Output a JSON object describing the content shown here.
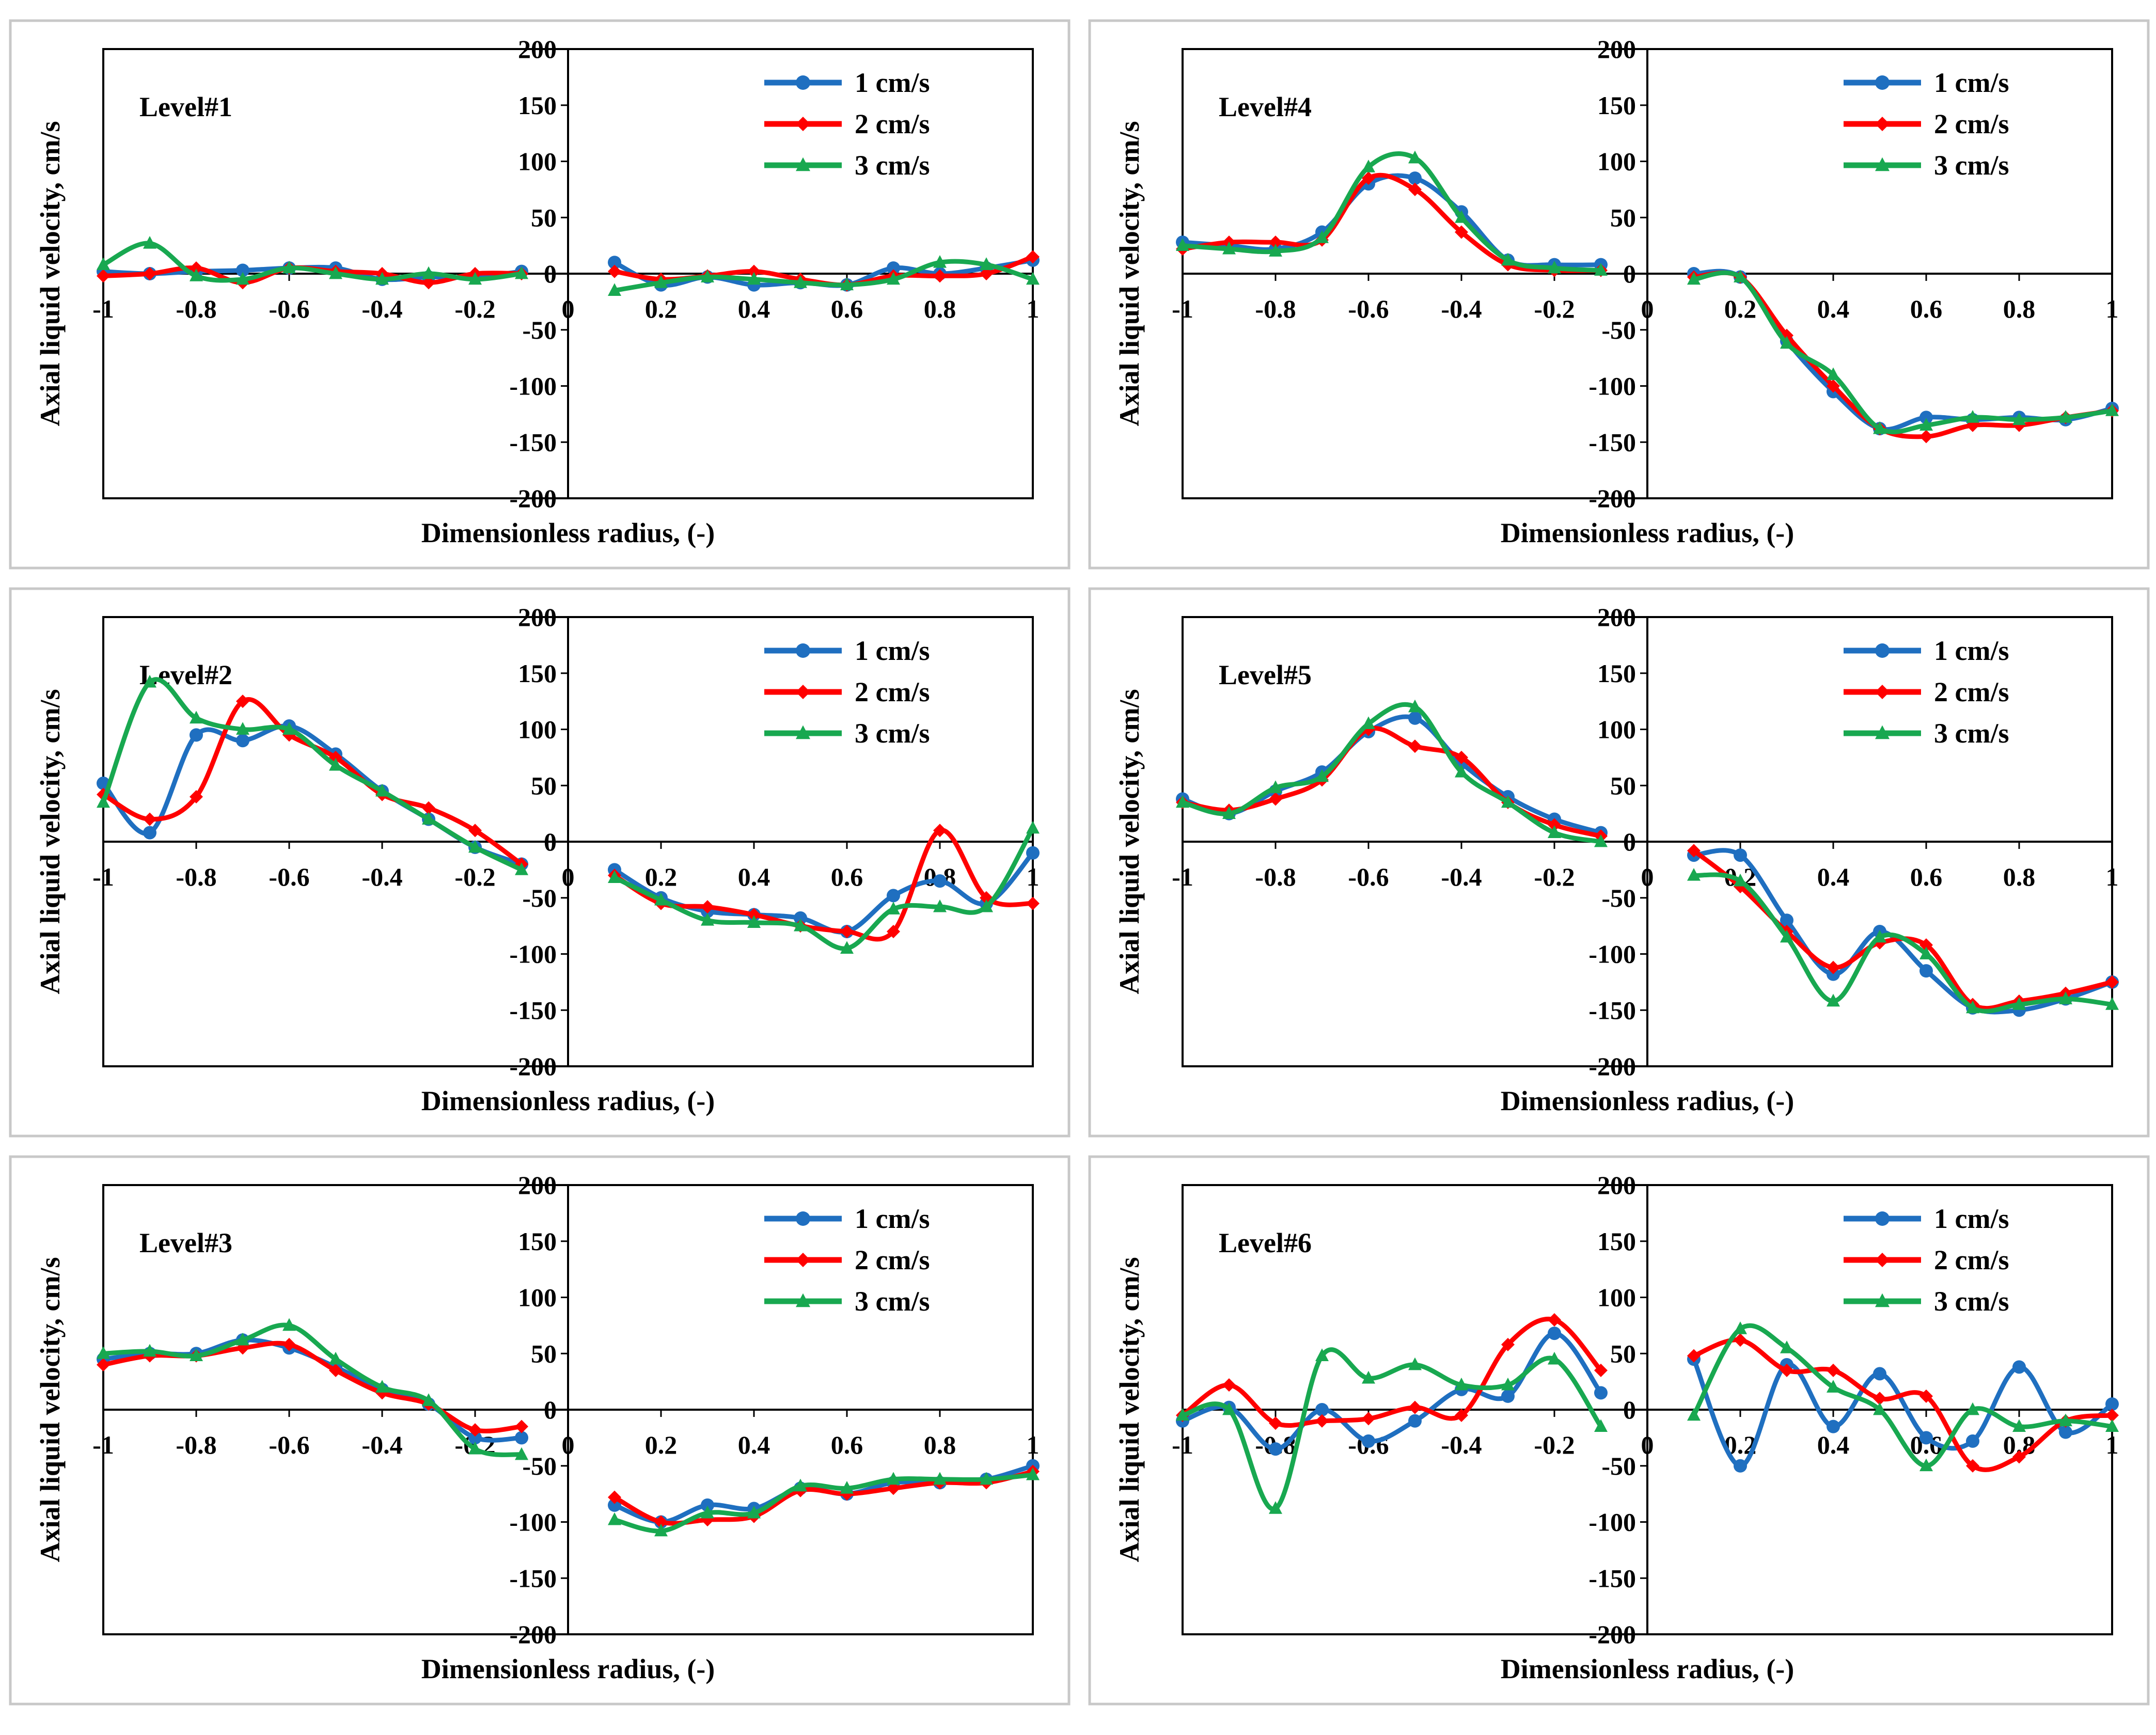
{
  "colors": {
    "s1": "#1f6fc0",
    "s2": "#ff0000",
    "s3": "#18a850"
  },
  "chart_data": [
    {
      "type": "line",
      "title": "Level#1",
      "xlabel": "Dimensionless radius, (-)",
      "ylabel": "Axial liquid velocity, cm/s",
      "xlim": [
        -1,
        1
      ],
      "ylim": [
        -200,
        200
      ],
      "xticks": [
        "-1",
        "-0.8",
        "-0.6",
        "-0.4",
        "-0.2",
        "0",
        "0.2",
        "0.4",
        "0.6",
        "0.8",
        "1"
      ],
      "yticks": [
        "-200",
        "-150",
        "-100",
        "-50",
        "0",
        "50",
        "100",
        "150",
        "200"
      ],
      "legend_position": "top-right",
      "series": [
        {
          "name": "1 cm/s",
          "color": "#1f6fc0",
          "x": [
            -1,
            -0.9,
            -0.8,
            -0.7,
            -0.6,
            -0.5,
            -0.4,
            -0.3,
            -0.2,
            -0.1,
            0.1,
            0.2,
            0.3,
            0.4,
            0.5,
            0.6,
            0.7,
            0.8,
            0.9,
            1
          ],
          "y": [
            2,
            0,
            2,
            3,
            5,
            5,
            -5,
            -3,
            -3,
            2,
            10,
            -10,
            -3,
            -10,
            -8,
            -10,
            5,
            0,
            5,
            12
          ]
        },
        {
          "name": "2 cm/s",
          "color": "#ff0000",
          "x": [
            -1,
            -0.9,
            -0.8,
            -0.7,
            -0.6,
            -0.5,
            -0.4,
            -0.3,
            -0.2,
            -0.1,
            0.1,
            0.2,
            0.3,
            0.4,
            0.5,
            0.6,
            0.7,
            0.8,
            0.9,
            1
          ],
          "y": [
            -2,
            0,
            5,
            -8,
            5,
            2,
            0,
            -8,
            0,
            0,
            2,
            -5,
            -2,
            2,
            -5,
            -10,
            -2,
            -2,
            0,
            15
          ]
        },
        {
          "name": "3 cm/s",
          "color": "#18a850",
          "x": [
            -1,
            -0.9,
            -0.8,
            -0.7,
            -0.6,
            -0.5,
            -0.4,
            -0.3,
            -0.2,
            -0.1,
            0.1,
            0.2,
            0.3,
            0.4,
            0.5,
            0.6,
            0.7,
            0.8,
            0.9,
            1
          ],
          "y": [
            8,
            27,
            -2,
            -5,
            5,
            0,
            -5,
            0,
            -5,
            0,
            -15,
            -8,
            -3,
            -5,
            -8,
            -10,
            -5,
            10,
            8,
            -5
          ]
        }
      ]
    },
    {
      "type": "line",
      "title": "Level#4",
      "xlabel": "Dimensionless radius, (-)",
      "ylabel": "Axial liquid velocity, cm/s",
      "xlim": [
        -1,
        1
      ],
      "ylim": [
        -200,
        200
      ],
      "xticks": [
        "-1",
        "-0.8",
        "-0.6",
        "-0.4",
        "-0.2",
        "0",
        "0.2",
        "0.4",
        "0.6",
        "0.8",
        "1"
      ],
      "yticks": [
        "-200",
        "-150",
        "-100",
        "-50",
        "0",
        "50",
        "100",
        "150",
        "200"
      ],
      "legend_position": "top-right",
      "series": [
        {
          "name": "1 cm/s",
          "color": "#1f6fc0",
          "x": [
            -1,
            -0.9,
            -0.8,
            -0.7,
            -0.6,
            -0.5,
            -0.4,
            -0.3,
            -0.2,
            -0.1,
            0.1,
            0.2,
            0.3,
            0.4,
            0.5,
            0.6,
            0.7,
            0.8,
            0.9,
            1
          ],
          "y": [
            28,
            25,
            22,
            37,
            80,
            85,
            55,
            12,
            8,
            8,
            0,
            -3,
            -60,
            -105,
            -138,
            -128,
            -130,
            -128,
            -130,
            -120
          ]
        },
        {
          "name": "2 cm/s",
          "color": "#ff0000",
          "x": [
            -1,
            -0.9,
            -0.8,
            -0.7,
            -0.6,
            -0.5,
            -0.4,
            -0.3,
            -0.2,
            -0.1,
            0.1,
            0.2,
            0.3,
            0.4,
            0.5,
            0.6,
            0.7,
            0.8,
            0.9,
            1
          ],
          "y": [
            22,
            28,
            28,
            30,
            85,
            75,
            37,
            8,
            3,
            3,
            -3,
            -3,
            -55,
            -100,
            -138,
            -145,
            -135,
            -135,
            -128,
            -122
          ]
        },
        {
          "name": "3 cm/s",
          "color": "#18a850",
          "x": [
            -1,
            -0.9,
            -0.8,
            -0.7,
            -0.6,
            -0.5,
            -0.4,
            -0.3,
            -0.2,
            -0.1,
            0.1,
            0.2,
            0.3,
            0.4,
            0.5,
            0.6,
            0.7,
            0.8,
            0.9,
            1
          ],
          "y": [
            25,
            22,
            20,
            32,
            95,
            103,
            50,
            12,
            5,
            3,
            -5,
            -3,
            -62,
            -90,
            -138,
            -135,
            -128,
            -130,
            -128,
            -122
          ]
        }
      ]
    },
    {
      "type": "line",
      "title": "Level#2",
      "xlabel": "Dimensionless radius, (-)",
      "ylabel": "Axial liquid velocity, cm/s",
      "xlim": [
        -1,
        1
      ],
      "ylim": [
        -200,
        200
      ],
      "xticks": [
        "-1",
        "-0.8",
        "-0.6",
        "-0.4",
        "-0.2",
        "0",
        "0.2",
        "0.4",
        "0.6",
        "0.8",
        "1"
      ],
      "yticks": [
        "-200",
        "-150",
        "-100",
        "-50",
        "0",
        "50",
        "100",
        "150",
        "200"
      ],
      "legend_position": "top-right",
      "series": [
        {
          "name": "1 cm/s",
          "color": "#1f6fc0",
          "x": [
            -1,
            -0.9,
            -0.8,
            -0.7,
            -0.6,
            -0.5,
            -0.4,
            -0.3,
            -0.2,
            -0.1,
            0.1,
            0.2,
            0.3,
            0.4,
            0.5,
            0.6,
            0.7,
            0.8,
            0.9,
            1
          ],
          "y": [
            52,
            8,
            95,
            90,
            103,
            78,
            45,
            20,
            -5,
            -20,
            -25,
            -50,
            -62,
            -65,
            -68,
            -80,
            -48,
            -35,
            -55,
            -10
          ]
        },
        {
          "name": "2 cm/s",
          "color": "#ff0000",
          "x": [
            -1,
            -0.9,
            -0.8,
            -0.7,
            -0.6,
            -0.5,
            -0.4,
            -0.3,
            -0.2,
            -0.1,
            0.1,
            0.2,
            0.3,
            0.4,
            0.5,
            0.6,
            0.7,
            0.8,
            0.9,
            1
          ],
          "y": [
            42,
            20,
            40,
            125,
            95,
            75,
            42,
            30,
            10,
            -20,
            -30,
            -55,
            -58,
            -65,
            -75,
            -80,
            -80,
            10,
            -50,
            -55
          ]
        },
        {
          "name": "3 cm/s",
          "color": "#18a850",
          "x": [
            -1,
            -0.9,
            -0.8,
            -0.7,
            -0.6,
            -0.5,
            -0.4,
            -0.3,
            -0.2,
            -0.1,
            0.1,
            0.2,
            0.3,
            0.4,
            0.5,
            0.6,
            0.7,
            0.8,
            0.9,
            1
          ],
          "y": [
            35,
            142,
            110,
            100,
            100,
            68,
            45,
            20,
            -5,
            -25,
            -32,
            -52,
            -70,
            -72,
            -75,
            -95,
            -60,
            -58,
            -58,
            12
          ]
        }
      ]
    },
    {
      "type": "line",
      "title": "Level#5",
      "xlabel": "Dimensionless radius, (-)",
      "ylabel": "Axial liquid velocity, cm/s",
      "xlim": [
        -1,
        1
      ],
      "ylim": [
        -200,
        200
      ],
      "xticks": [
        "-1",
        "-0.8",
        "-0.6",
        "-0.4",
        "-0.2",
        "0",
        "0.2",
        "0.4",
        "0.6",
        "0.8",
        "1"
      ],
      "yticks": [
        "-200",
        "-150",
        "-100",
        "-50",
        "0",
        "50",
        "100",
        "150",
        "200"
      ],
      "legend_position": "top-right",
      "series": [
        {
          "name": "1 cm/s",
          "color": "#1f6fc0",
          "x": [
            -1,
            -0.9,
            -0.8,
            -0.7,
            -0.6,
            -0.5,
            -0.4,
            -0.3,
            -0.2,
            -0.1,
            0.1,
            0.2,
            0.3,
            0.4,
            0.5,
            0.6,
            0.7,
            0.8,
            0.9,
            1
          ],
          "y": [
            38,
            25,
            45,
            62,
            98,
            110,
            70,
            40,
            20,
            8,
            -12,
            -12,
            -70,
            -118,
            -80,
            -115,
            -148,
            -150,
            -140,
            -125
          ]
        },
        {
          "name": "2 cm/s",
          "color": "#ff0000",
          "x": [
            -1,
            -0.9,
            -0.8,
            -0.7,
            -0.6,
            -0.5,
            -0.4,
            -0.3,
            -0.2,
            -0.1,
            0.1,
            0.2,
            0.3,
            0.4,
            0.5,
            0.6,
            0.7,
            0.8,
            0.9,
            1
          ],
          "y": [
            35,
            28,
            38,
            55,
            100,
            85,
            75,
            35,
            15,
            5,
            -8,
            -40,
            -80,
            -112,
            -90,
            -92,
            -145,
            -142,
            -135,
            -125
          ]
        },
        {
          "name": "3 cm/s",
          "color": "#18a850",
          "x": [
            -1,
            -0.9,
            -0.8,
            -0.7,
            -0.6,
            -0.5,
            -0.4,
            -0.3,
            -0.2,
            -0.1,
            0.1,
            0.2,
            0.3,
            0.4,
            0.5,
            0.6,
            0.7,
            0.8,
            0.9,
            1
          ],
          "y": [
            35,
            25,
            48,
            58,
            105,
            120,
            62,
            35,
            8,
            0,
            -30,
            -35,
            -85,
            -142,
            -85,
            -100,
            -148,
            -145,
            -140,
            -145
          ]
        }
      ]
    },
    {
      "type": "line",
      "title": "Level#3",
      "xlabel": "Dimensionless radius, (-)",
      "ylabel": "Axial liquid velocity, cm/s",
      "xlim": [
        -1,
        1
      ],
      "ylim": [
        -200,
        200
      ],
      "xticks": [
        "-1",
        "-0.8",
        "-0.6",
        "-0.4",
        "-0.2",
        "0",
        "0.2",
        "0.4",
        "0.6",
        "0.8",
        "1"
      ],
      "yticks": [
        "-200",
        "-150",
        "-100",
        "-50",
        "0",
        "50",
        "100",
        "150",
        "200"
      ],
      "legend_position": "top-right",
      "series": [
        {
          "name": "1 cm/s",
          "color": "#1f6fc0",
          "x": [
            -1,
            -0.9,
            -0.8,
            -0.7,
            -0.6,
            -0.5,
            -0.4,
            -0.3,
            -0.2,
            -0.1,
            0.1,
            0.2,
            0.3,
            0.4,
            0.5,
            0.6,
            0.7,
            0.8,
            0.9,
            1
          ],
          "y": [
            45,
            50,
            50,
            62,
            55,
            38,
            18,
            5,
            -25,
            -25,
            -85,
            -100,
            -85,
            -88,
            -70,
            -75,
            -65,
            -65,
            -62,
            -50
          ]
        },
        {
          "name": "2 cm/s",
          "color": "#ff0000",
          "x": [
            -1,
            -0.9,
            -0.8,
            -0.7,
            -0.6,
            -0.5,
            -0.4,
            -0.3,
            -0.2,
            -0.1,
            0.1,
            0.2,
            0.3,
            0.4,
            0.5,
            0.6,
            0.7,
            0.8,
            0.9,
            1
          ],
          "y": [
            40,
            48,
            48,
            55,
            58,
            35,
            15,
            5,
            -18,
            -15,
            -78,
            -100,
            -98,
            -95,
            -72,
            -75,
            -70,
            -65,
            -65,
            -55
          ]
        },
        {
          "name": "3 cm/s",
          "color": "#18a850",
          "x": [
            -1,
            -0.9,
            -0.8,
            -0.7,
            -0.6,
            -0.5,
            -0.4,
            -0.3,
            -0.2,
            -0.1,
            0.1,
            0.2,
            0.3,
            0.4,
            0.5,
            0.6,
            0.7,
            0.8,
            0.9,
            1
          ],
          "y": [
            50,
            52,
            48,
            62,
            75,
            45,
            20,
            8,
            -35,
            -40,
            -98,
            -108,
            -92,
            -92,
            -68,
            -70,
            -62,
            -62,
            -62,
            -58
          ]
        }
      ]
    },
    {
      "type": "line",
      "title": "Level#6",
      "xlabel": "Dimensionless radius, (-)",
      "ylabel": "Axial liquid velocity, cm/s",
      "xlim": [
        -1,
        1
      ],
      "ylim": [
        -200,
        200
      ],
      "xticks": [
        "-1",
        "-0.8",
        "-0.6",
        "-0.4",
        "-0.2",
        "0",
        "0.2",
        "0.4",
        "0.6",
        "0.8",
        "1"
      ],
      "yticks": [
        "-200",
        "-150",
        "-100",
        "-50",
        "0",
        "50",
        "100",
        "150",
        "200"
      ],
      "legend_position": "top-right",
      "series": [
        {
          "name": "1 cm/s",
          "color": "#1f6fc0",
          "x": [
            -1,
            -0.9,
            -0.8,
            -0.7,
            -0.6,
            -0.5,
            -0.4,
            -0.3,
            -0.2,
            -0.1,
            0.1,
            0.2,
            0.3,
            0.4,
            0.5,
            0.6,
            0.7,
            0.8,
            0.9,
            1
          ],
          "y": [
            -10,
            2,
            -35,
            0,
            -28,
            -10,
            18,
            12,
            68,
            15,
            45,
            -50,
            40,
            -15,
            32,
            -25,
            -28,
            38,
            -20,
            5
          ]
        },
        {
          "name": "2 cm/s",
          "color": "#ff0000",
          "x": [
            -1,
            -0.9,
            -0.8,
            -0.7,
            -0.6,
            -0.5,
            -0.4,
            -0.3,
            -0.2,
            -0.1,
            0.1,
            0.2,
            0.3,
            0.4,
            0.5,
            0.6,
            0.7,
            0.8,
            0.9,
            1
          ],
          "y": [
            -5,
            22,
            -12,
            -10,
            -8,
            2,
            -5,
            58,
            80,
            35,
            48,
            62,
            35,
            35,
            10,
            12,
            -50,
            -42,
            -10,
            -5
          ]
        },
        {
          "name": "3 cm/s",
          "color": "#18a850",
          "x": [
            -1,
            -0.9,
            -0.8,
            -0.7,
            -0.6,
            -0.5,
            -0.4,
            -0.3,
            -0.2,
            -0.1,
            0.1,
            0.2,
            0.3,
            0.4,
            0.5,
            0.6,
            0.7,
            0.8,
            0.9,
            1
          ],
          "y": [
            -5,
            0,
            -88,
            48,
            28,
            40,
            22,
            22,
            45,
            -15,
            -5,
            72,
            55,
            20,
            0,
            -50,
            0,
            -15,
            -10,
            -15
          ]
        }
      ]
    }
  ]
}
